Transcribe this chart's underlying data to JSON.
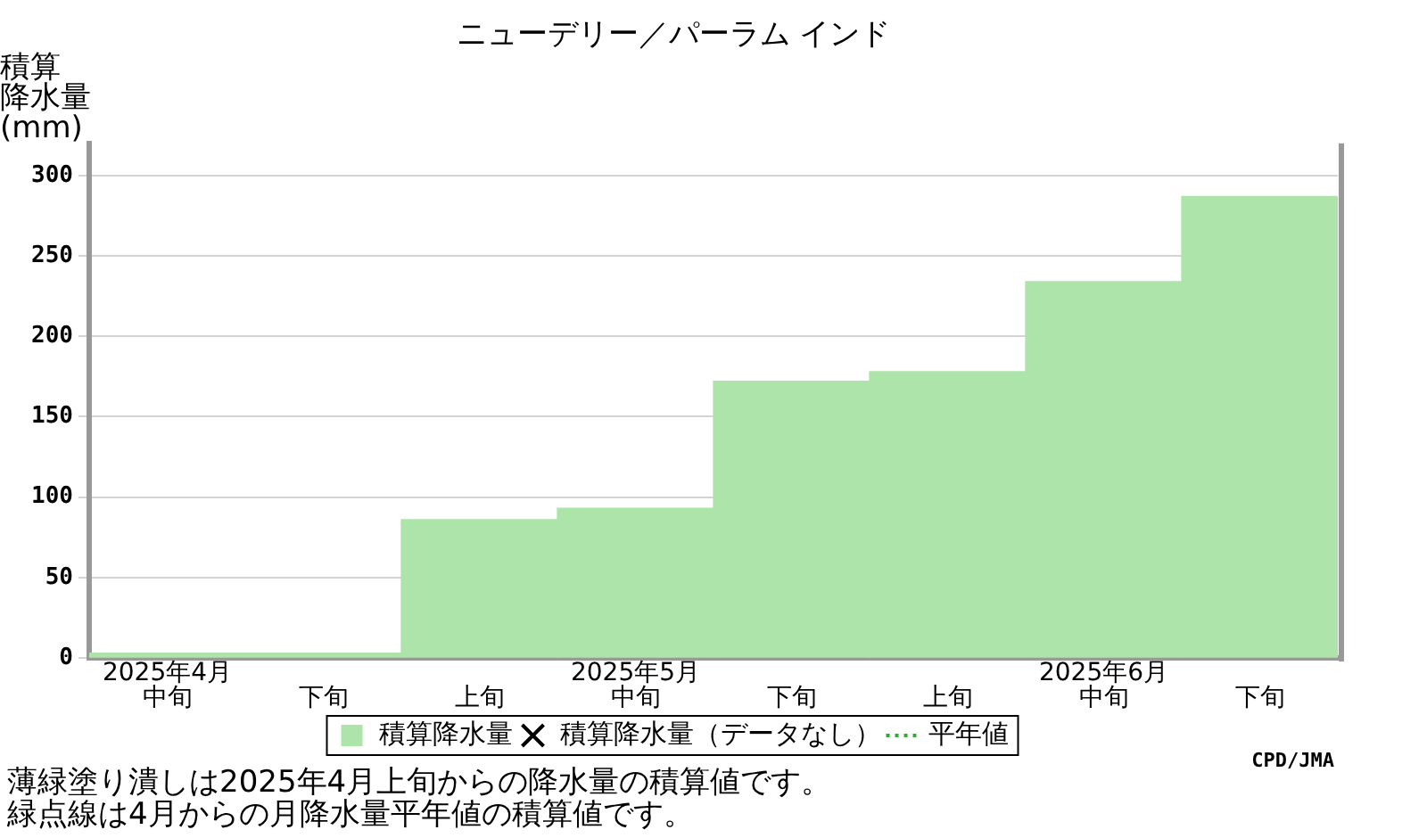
{
  "chart_data": {
    "type": "bar",
    "title": "ニューデリー／パーラム インド",
    "ylabel": "積算降水量(mm)",
    "categories": [
      "2025年4月中旬",
      "下旬",
      "上旬",
      "2025年5月中旬",
      "下旬",
      "上旬",
      "2025年6月中旬",
      "下旬"
    ],
    "series": [
      {
        "name": "積算降水量",
        "color": "#ace4aa",
        "values": [
          3,
          3,
          86,
          93,
          172,
          178,
          234,
          287
        ]
      },
      {
        "name": "積算降水量（データなし）",
        "type": "scatter",
        "marker": "cross",
        "color": "#000000",
        "values": [
          null,
          null,
          null,
          null,
          null,
          null,
          null,
          null
        ]
      },
      {
        "name": "平年値",
        "type": "line",
        "line_style": "dotted",
        "color": "#33aa33",
        "values": [
          null,
          null,
          null,
          null,
          null,
          null,
          null,
          null
        ]
      }
    ],
    "ylim": [
      0,
      320
    ],
    "yticks": [
      0,
      50,
      100,
      150,
      200,
      250,
      300
    ],
    "grid": "y",
    "legend": "bottom",
    "annotations": [
      "CPD/JMA",
      "薄緑塗り潰しは2025年4月上旬からの降水量の積算値です。",
      "緑点線は4月からの月降水量平年値の積算値です。"
    ]
  }
}
